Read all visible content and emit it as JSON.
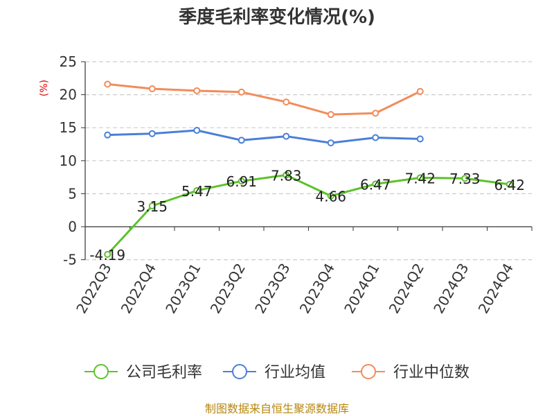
{
  "chart_data": {
    "type": "line",
    "title": "季度毛利率变化情况(%)",
    "unit_label": "(%)",
    "categories": [
      "2022Q3",
      "2022Q4",
      "2023Q1",
      "2023Q2",
      "2023Q3",
      "2023Q4",
      "2024Q1",
      "2024Q2",
      "2024Q3",
      "2024Q4"
    ],
    "ylim": [
      -5,
      25
    ],
    "yticks": [
      25,
      20,
      15,
      10,
      5,
      0,
      -5
    ],
    "grid": true,
    "legend_position": "bottom",
    "series": [
      {
        "name": "公司毛利率",
        "color": "#5cc22a",
        "values": [
          -4.19,
          3.15,
          5.47,
          6.91,
          7.83,
          4.66,
          6.47,
          7.42,
          7.33,
          6.42
        ],
        "labels": [
          "-4.19",
          "3.15",
          "5.47",
          "6.91",
          "7.83",
          "4.66",
          "6.47",
          "7.42",
          "7.33",
          "6.42"
        ]
      },
      {
        "name": "行业均值",
        "color": "#4a7fd8",
        "values": [
          13.9,
          14.1,
          14.6,
          13.1,
          13.7,
          12.7,
          13.5,
          13.3,
          null,
          null
        ]
      },
      {
        "name": "行业中位数",
        "color": "#f28c5a",
        "values": [
          21.6,
          20.9,
          20.6,
          20.4,
          18.9,
          17.0,
          17.2,
          20.5,
          null,
          null
        ]
      }
    ]
  },
  "source": "制图数据来自恒生聚源数据库"
}
